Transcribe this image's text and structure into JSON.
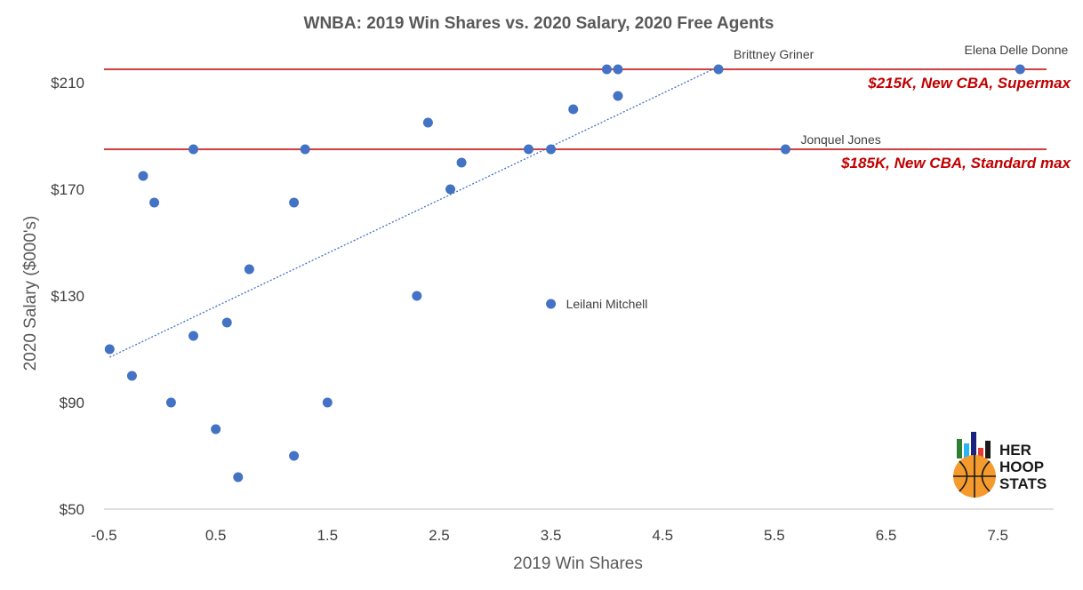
{
  "chart_data": {
    "type": "scatter",
    "title": "WNBA: 2019 Win Shares vs. 2020 Salary, 2020 Free Agents",
    "xlabel": "2019 Win Shares",
    "ylabel": "2020 Salary ($000's)",
    "xlim": [
      -0.5,
      8.0
    ],
    "ylim": [
      50,
      225
    ],
    "x_ticks": [
      -0.5,
      0.5,
      1.5,
      2.5,
      3.5,
      4.5,
      5.5,
      6.5,
      7.5
    ],
    "x_tick_labels": [
      "-0.5",
      "0.5",
      "1.5",
      "2.5",
      "3.5",
      "4.5",
      "5.5",
      "6.5",
      "7.5"
    ],
    "y_ticks": [
      50,
      90,
      130,
      170,
      210
    ],
    "y_tick_labels": [
      "$50",
      "$90",
      "$130",
      "$170",
      "$210"
    ],
    "point_color": "#4472c4",
    "points": [
      {
        "x": -0.45,
        "y": 110
      },
      {
        "x": -0.25,
        "y": 100
      },
      {
        "x": -0.15,
        "y": 175
      },
      {
        "x": -0.05,
        "y": 165
      },
      {
        "x": 0.1,
        "y": 90
      },
      {
        "x": 0.3,
        "y": 185
      },
      {
        "x": 0.3,
        "y": 115
      },
      {
        "x": 0.5,
        "y": 80
      },
      {
        "x": 0.6,
        "y": 120
      },
      {
        "x": 0.7,
        "y": 62
      },
      {
        "x": 0.8,
        "y": 140
      },
      {
        "x": 1.2,
        "y": 165
      },
      {
        "x": 1.2,
        "y": 70
      },
      {
        "x": 1.3,
        "y": 185
      },
      {
        "x": 1.5,
        "y": 90
      },
      {
        "x": 2.3,
        "y": 130
      },
      {
        "x": 2.4,
        "y": 195
      },
      {
        "x": 2.6,
        "y": 170
      },
      {
        "x": 2.7,
        "y": 180
      },
      {
        "x": 3.3,
        "y": 185
      },
      {
        "x": 3.5,
        "y": 185
      },
      {
        "x": 3.5,
        "y": 127,
        "label": "Leilani Mitchell"
      },
      {
        "x": 3.7,
        "y": 200
      },
      {
        "x": 4.0,
        "y": 215
      },
      {
        "x": 4.1,
        "y": 215
      },
      {
        "x": 4.1,
        "y": 205
      },
      {
        "x": 5.0,
        "y": 215,
        "label": "Brittney Griner"
      },
      {
        "x": 5.6,
        "y": 185,
        "label": "Jonquel Jones"
      },
      {
        "x": 7.7,
        "y": 215,
        "label": "Elena Delle Donne"
      }
    ],
    "trendline": {
      "x": [
        -0.45,
        5.0
      ],
      "y": [
        107,
        216
      ],
      "color": "#4472c4",
      "style": "dotted"
    },
    "reference_lines": [
      {
        "y": 215,
        "label": "$215K, New CBA, Supermax",
        "color": "#c00000"
      },
      {
        "y": 185,
        "label": "$185K, New CBA, Standard max",
        "color": "#c00000"
      }
    ]
  },
  "logo": {
    "lines": [
      "HER",
      "HOOP",
      "STATS"
    ],
    "bar_colors": [
      "#2e7d32",
      "#29b6f6",
      "#1a237e",
      "#e53935",
      "#1a1a1a"
    ],
    "ball_color": "#f59a2c"
  }
}
